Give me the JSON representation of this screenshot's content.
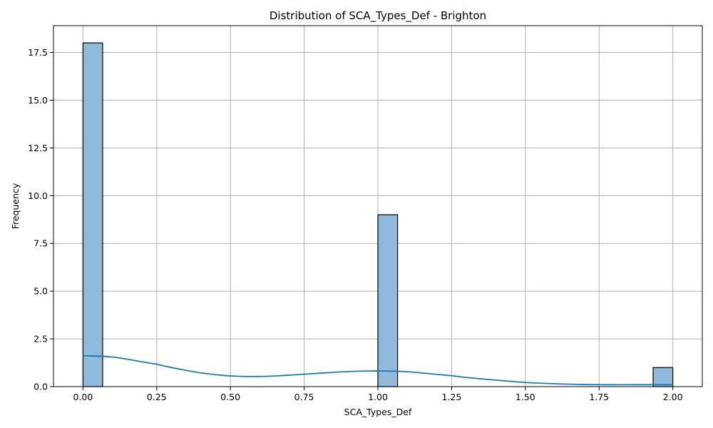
{
  "chart_data": {
    "type": "bar",
    "subtype": "histogram_with_kde",
    "title": "Distribution of SCA_Types_Def - Brighton",
    "xlabel": "SCA_Types_Def",
    "ylabel": "Frequency",
    "xlim": [
      -0.1,
      2.1
    ],
    "ylim": [
      0,
      18.9
    ],
    "grid": true,
    "x_ticks": [
      0.0,
      0.25,
      0.5,
      0.75,
      1.0,
      1.25,
      1.5,
      1.75,
      2.0
    ],
    "x_tick_labels": [
      "0.00",
      "0.25",
      "0.50",
      "0.75",
      "1.00",
      "1.25",
      "1.50",
      "1.75",
      "2.00"
    ],
    "y_ticks": [
      0.0,
      2.5,
      5.0,
      7.5,
      10.0,
      12.5,
      15.0,
      17.5
    ],
    "y_tick_labels": [
      "0.0",
      "2.5",
      "5.0",
      "7.5",
      "10.0",
      "12.5",
      "15.0",
      "17.5"
    ],
    "bin_width": 0.0667,
    "bins": [
      {
        "start": 0.0,
        "end": 0.0667,
        "count": 18
      },
      {
        "start": 1.0,
        "end": 1.0667,
        "count": 9
      },
      {
        "start": 1.9333,
        "end": 2.0,
        "count": 1
      }
    ],
    "kde": {
      "x": [
        0.0,
        0.1,
        0.2,
        0.25,
        0.3,
        0.4,
        0.5,
        0.6,
        0.7,
        0.8,
        0.9,
        1.0,
        1.1,
        1.2,
        1.25,
        1.3,
        1.4,
        1.5,
        1.6,
        1.7,
        1.8,
        1.9,
        2.0
      ],
      "y": [
        1.62,
        1.55,
        1.3,
        1.17,
        1.0,
        0.72,
        0.56,
        0.53,
        0.6,
        0.7,
        0.79,
        0.82,
        0.78,
        0.64,
        0.57,
        0.48,
        0.34,
        0.22,
        0.15,
        0.11,
        0.1,
        0.1,
        0.1
      ]
    },
    "colors": {
      "bar_fill": "#8fbadb",
      "kde_line": "#1f77b4"
    }
  }
}
